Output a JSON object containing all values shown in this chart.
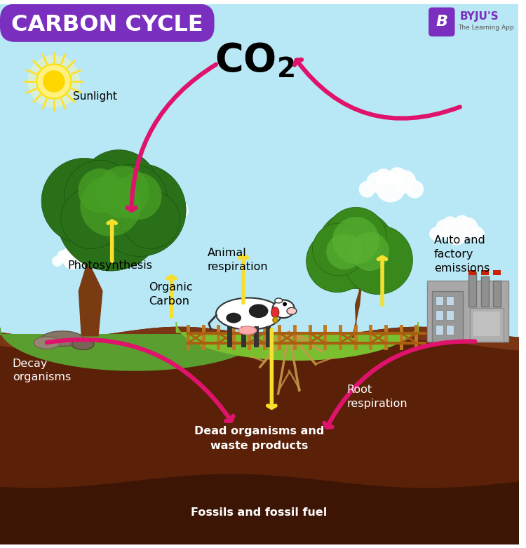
{
  "title": "CARBON CYCLE",
  "title_bg_color": "#7b2fbe",
  "title_text_color": "#ffffff",
  "bg_sky_color": "#b8e8f5",
  "co2_label": "CO₂",
  "labels": {
    "sunlight": "Sunlight",
    "photosynthesis": "Photosynthesis",
    "organic_carbon": "Organic\nCarbon",
    "animal_respiration": "Animal\nrespiration",
    "auto_factory": "Auto and\nfactory\nemissions",
    "decay": "Decay\norganisms",
    "root_respiration": "Root\nrespiration",
    "dead_organisms": "Dead organisms and\nwaste products",
    "fossils": "Fossils and fossil fuel"
  },
  "arrow_color": "#e0136c",
  "yellow_arrow_color": "#f5e030",
  "ground_dark": "#5a2008",
  "ground_mid": "#7a3515",
  "ground_deep": "#3d1505",
  "grass_left": "#5a9e2f",
  "grass_mid": "#7abf30"
}
